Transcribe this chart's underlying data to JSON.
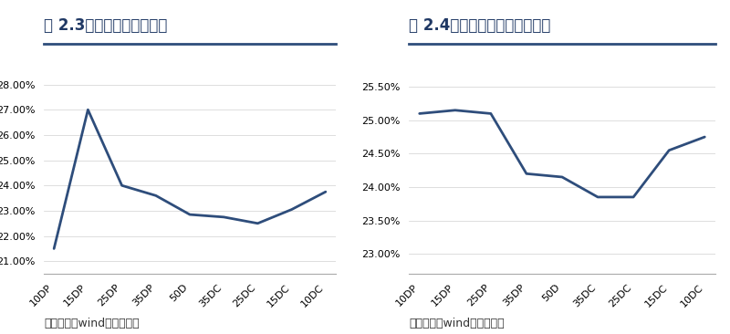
{
  "chart1_title": "图 2.3：锡期权波动率情况",
  "chart2_title": "图 2.4：氧化铝期权波动率情况",
  "x_labels": [
    "10DP",
    "15DP",
    "25DP",
    "35DP",
    "50D",
    "35DC",
    "25DC",
    "15DC",
    "10DC"
  ],
  "chart1_values": [
    0.215,
    0.27,
    0.24,
    0.236,
    0.2285,
    0.2275,
    0.225,
    0.2305,
    0.2375
  ],
  "chart2_values": [
    0.251,
    0.2515,
    0.251,
    0.242,
    0.2415,
    0.2385,
    0.2385,
    0.2455,
    0.2475
  ],
  "chart1_ylim": [
    0.205,
    0.287
  ],
  "chart2_ylim": [
    0.227,
    0.258
  ],
  "chart1_yticks": [
    0.21,
    0.22,
    0.23,
    0.24,
    0.25,
    0.26,
    0.27,
    0.28
  ],
  "chart2_yticks": [
    0.23,
    0.235,
    0.24,
    0.245,
    0.25,
    0.255
  ],
  "line_color": "#2e4d7b",
  "title_color": "#1f3864",
  "source_text1": "数据来源：wind、南华研究",
  "source_text2": "数据来源：wind、南华研究",
  "bg_color": "#ffffff",
  "title_bar_color": "#2e4d7b",
  "title_fontsize": 12,
  "source_fontsize": 9,
  "tick_fontsize": 8
}
